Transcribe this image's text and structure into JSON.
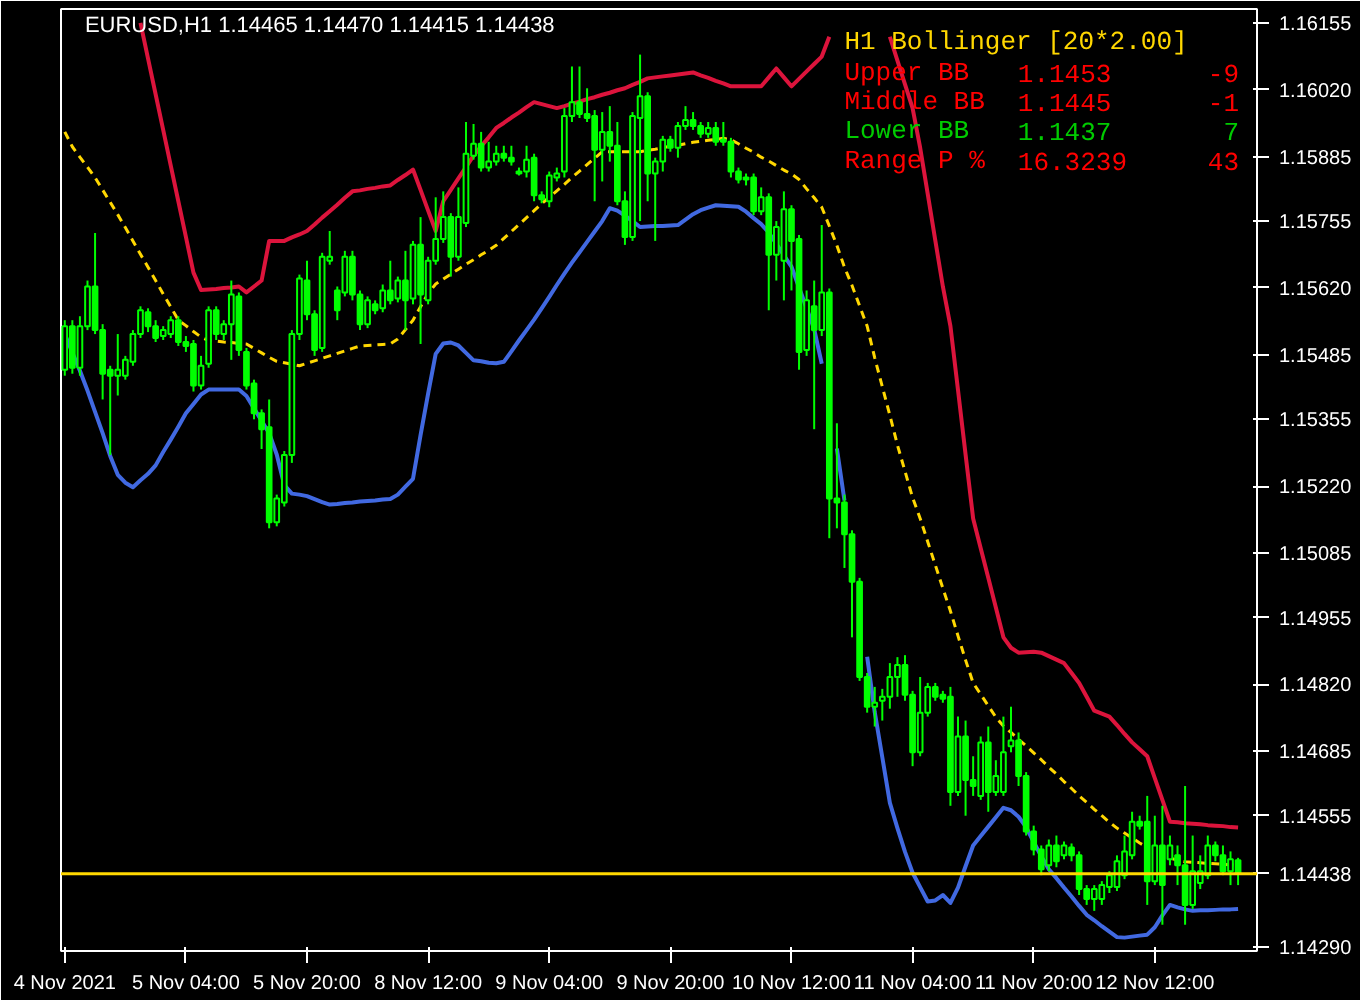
{
  "chart_data": {
    "type": "candlestick",
    "title": "EURUSD,H1  1.14465 1.14470 1.14415 1.14438",
    "color": "#00ff00",
    "annotations": [
      "H1 Bollinger [20*2.00]",
      "Upper BB",
      "1.1453",
      "-9",
      "Middle BB",
      "1.1445",
      "-1",
      "Lower BB",
      "1.1437",
      "7",
      "Range P %",
      "16.3239",
      "43"
    ],
    "categories": [
      "4 Nov 2021",
      null,
      null,
      null,
      null,
      null,
      null,
      null,
      null,
      null,
      null,
      null,
      null,
      null,
      null,
      null,
      "5 Nov 04:00",
      null,
      null,
      null,
      null,
      null,
      null,
      null,
      null,
      null,
      null,
      null,
      null,
      null,
      null,
      null,
      "5 Nov 20:00",
      null,
      null,
      null,
      null,
      null,
      null,
      null,
      null,
      null,
      null,
      null,
      null,
      null,
      null,
      null,
      "8 Nov 12:00",
      null,
      null,
      null,
      null,
      null,
      null,
      null,
      null,
      null,
      null,
      null,
      null,
      null,
      null,
      null,
      "9 Nov 04:00",
      null,
      null,
      null,
      null,
      null,
      null,
      null,
      null,
      null,
      null,
      null,
      null,
      null,
      null,
      null,
      "9 Nov 20:00",
      null,
      null,
      null,
      null,
      null,
      null,
      null,
      null,
      null,
      null,
      null,
      null,
      null,
      null,
      null,
      "10 Nov 12:00",
      null,
      null,
      null,
      null,
      null,
      null,
      null,
      null,
      null,
      null,
      null,
      null,
      null,
      null,
      null,
      "11 Nov 04:00",
      null,
      null,
      null,
      null,
      null,
      null,
      null,
      null,
      null,
      null,
      null,
      null,
      null,
      null,
      null,
      "11 Nov 20:00",
      null,
      null,
      null,
      null,
      null,
      null,
      null,
      null,
      null,
      null,
      null,
      null,
      null,
      null,
      null,
      "12 Nov 12:00",
      null,
      null,
      null,
      null,
      null,
      null,
      null,
      null,
      null,
      null,
      null
    ],
    "ohlc": [
      [
        1.15455,
        1.15555,
        1.15443,
        1.15543
      ],
      [
        1.15543,
        1.15555,
        1.15447,
        1.15459
      ],
      [
        1.15459,
        1.15563,
        1.15443,
        1.15543
      ],
      [
        1.15543,
        1.15635,
        1.15535,
        1.15623
      ],
      [
        1.15623,
        1.15731,
        1.15527,
        1.15535
      ],
      [
        1.15535,
        1.15547,
        1.15395,
        1.15447
      ],
      [
        1.15455,
        1.15463,
        1.15283,
        1.15443
      ],
      [
        1.15443,
        1.15527,
        1.15403,
        1.15455
      ],
      [
        1.15443,
        1.15483,
        1.15435,
        1.15475
      ],
      [
        1.15471,
        1.15535,
        1.15463,
        1.15527
      ],
      [
        1.15527,
        1.15583,
        1.15519,
        1.15575
      ],
      [
        1.15571,
        1.15579,
        1.15531,
        1.15543
      ],
      [
        1.15543,
        1.15555,
        1.15511,
        1.15519
      ],
      [
        1.15523,
        1.15543,
        1.15515,
        1.15535
      ],
      [
        1.15527,
        1.15563,
        1.15519,
        1.15555
      ],
      [
        1.15555,
        1.15563,
        1.15503,
        1.15511
      ],
      [
        1.15511,
        1.15523,
        1.15491,
        1.15503
      ],
      [
        1.15507,
        1.15515,
        1.15411,
        1.15423
      ],
      [
        1.15423,
        1.15483,
        1.15415,
        1.15463
      ],
      [
        1.15467,
        1.15583,
        1.15459,
        1.15575
      ],
      [
        1.15575,
        1.15583,
        1.15515,
        1.15527
      ],
      [
        1.15527,
        1.15555,
        1.15515,
        1.15547
      ],
      [
        1.15547,
        1.15635,
        1.15475,
        1.15607
      ],
      [
        1.15603,
        1.15611,
        1.15483,
        1.15495
      ],
      [
        1.15491,
        1.15499,
        1.15415,
        1.15423
      ],
      [
        1.15427,
        1.15435,
        1.15355,
        1.15367
      ],
      [
        1.15367,
        1.15375,
        1.15295,
        1.15335
      ],
      [
        1.15339,
        1.15395,
        1.15135,
        1.15147
      ],
      [
        1.15147,
        1.15203,
        1.15139,
        1.15195
      ],
      [
        1.15187,
        1.15291,
        1.15179,
        1.15283
      ],
      [
        1.15283,
        1.15535,
        1.15267,
        1.15527
      ],
      [
        1.15527,
        1.15647,
        1.15515,
        1.15639
      ],
      [
        1.15635,
        1.15675,
        1.15555,
        1.15567
      ],
      [
        1.15567,
        1.15575,
        1.15483,
        1.15495
      ],
      [
        1.15499,
        1.15691,
        1.15491,
        1.15683
      ],
      [
        1.15675,
        1.15735,
        1.15667,
        1.15683
      ],
      [
        1.15615,
        1.15623,
        1.15555,
        1.15575
      ],
      [
        1.15611,
        1.15695,
        1.15603,
        1.15683
      ],
      [
        1.15683,
        1.15695,
        1.15595,
        1.15607
      ],
      [
        1.15607,
        1.15615,
        1.15535,
        1.15547
      ],
      [
        1.15547,
        1.15603,
        1.15539,
        1.15595
      ],
      [
        1.15587,
        1.15595,
        1.15567,
        1.15575
      ],
      [
        1.15579,
        1.15627,
        1.15571,
        1.15615
      ],
      [
        1.15615,
        1.15675,
        1.15587,
        1.15595
      ],
      [
        1.15599,
        1.15643,
        1.15591,
        1.15635
      ],
      [
        1.15635,
        1.15695,
        1.15535,
        1.15595
      ],
      [
        1.15599,
        1.15715,
        1.15587,
        1.15707
      ],
      [
        1.15707,
        1.15763,
        1.15507,
        1.15607
      ],
      [
        1.15595,
        1.15683,
        1.15587,
        1.15675
      ],
      [
        1.15675,
        1.15803,
        1.15667,
        1.15719
      ],
      [
        1.15719,
        1.15815,
        1.15711,
        1.15763
      ],
      [
        1.15763,
        1.15771,
        1.15643,
        1.15683
      ],
      [
        1.15683,
        1.15823,
        1.15675,
        1.15763
      ],
      [
        1.15751,
        1.15955,
        1.15743,
        1.15891
      ],
      [
        1.15887,
        1.15951,
        1.15879,
        1.15911
      ],
      [
        1.15911,
        1.15935,
        1.15855,
        1.15863
      ],
      [
        1.15863,
        1.15915,
        1.15855,
        1.15875
      ],
      [
        1.15875,
        1.15907,
        1.15867,
        1.15891
      ],
      [
        1.15891,
        1.15907,
        1.15875,
        1.15883
      ],
      [
        1.15883,
        1.15907,
        1.15867,
        1.15875
      ],
      [
        1.15855,
        1.15863,
        1.15847,
        1.15851
      ],
      [
        1.15855,
        1.15907,
        1.15843,
        1.15879
      ],
      [
        1.15883,
        1.15891,
        1.15795,
        1.15807
      ],
      [
        1.15807,
        1.15815,
        1.15791,
        1.15799
      ],
      [
        1.15795,
        1.15855,
        1.15783,
        1.15847
      ],
      [
        1.15843,
        1.15863,
        1.15835,
        1.15851
      ],
      [
        1.15855,
        1.15983,
        1.15843,
        1.15967
      ],
      [
        1.15967,
        1.16067,
        1.15955,
        1.15995
      ],
      [
        1.15995,
        1.16067,
        1.15963,
        1.15971
      ],
      [
        1.15971,
        1.16023,
        1.15955,
        1.15963
      ],
      [
        1.15967,
        1.15979,
        1.15795,
        1.15899
      ],
      [
        1.15899,
        1.15975,
        1.15835,
        1.15935
      ],
      [
        1.15935,
        1.15987,
        1.15875,
        1.15907
      ],
      [
        1.15907,
        1.15955,
        1.15787,
        1.15795
      ],
      [
        1.15795,
        1.15815,
        1.15707,
        1.15723
      ],
      [
        1.15723,
        1.15975,
        1.15715,
        1.15967
      ],
      [
        1.15963,
        1.16091,
        1.15755,
        1.16007
      ],
      [
        1.16007,
        1.16015,
        1.15795,
        1.15851
      ],
      [
        1.15851,
        1.15883,
        1.15715,
        1.15875
      ],
      [
        1.15875,
        1.15927,
        1.15855,
        1.15919
      ],
      [
        1.15919,
        1.15927,
        1.15895,
        1.15903
      ],
      [
        1.15903,
        1.15955,
        1.15883,
        1.15947
      ],
      [
        1.15947,
        1.15987,
        1.15939,
        1.15959
      ],
      [
        1.15959,
        1.15975,
        1.15939,
        1.15947
      ],
      [
        1.15947,
        1.15955,
        1.15923,
        1.15931
      ],
      [
        1.15931,
        1.15955,
        1.15923,
        1.15943
      ],
      [
        1.15943,
        1.15955,
        1.15907,
        1.15915
      ],
      [
        1.15915,
        1.15955,
        1.15907,
        1.15919
      ],
      [
        1.15915,
        1.15923,
        1.15843,
        1.15855
      ],
      [
        1.15855,
        1.15863,
        1.15831,
        1.15839
      ],
      [
        1.15839,
        1.15851,
        1.15827,
        1.15843
      ],
      [
        1.15843,
        1.15851,
        1.15767,
        1.15775
      ],
      [
        1.15775,
        1.15823,
        1.15767,
        1.15803
      ],
      [
        1.15803,
        1.15811,
        1.15575,
        1.15687
      ],
      [
        1.15687,
        1.15755,
        1.15635,
        1.15743
      ],
      [
        1.15675,
        1.15815,
        1.15595,
        1.15779
      ],
      [
        1.15779,
        1.15787,
        1.15615,
        1.15715
      ],
      [
        1.15719,
        1.15727,
        1.15455,
        1.15491
      ],
      [
        1.15495,
        1.15615,
        1.15483,
        1.15595
      ],
      [
        1.15583,
        1.15635,
        1.15335,
        1.15535
      ],
      [
        1.15535,
        1.15747,
        1.15523,
        1.15611
      ],
      [
        1.15611,
        1.15619,
        1.15115,
        1.15195
      ],
      [
        1.15195,
        1.15347,
        1.15135,
        1.15187
      ],
      [
        1.15187,
        1.15203,
        1.15055,
        1.15123
      ],
      [
        1.15123,
        1.15131,
        1.14915,
        1.15027
      ],
      [
        1.15027,
        1.15035,
        1.14827,
        1.14835
      ],
      [
        1.14835,
        1.14843,
        1.14763,
        1.14775
      ],
      [
        1.14775,
        1.14815,
        1.14735,
        1.14783
      ],
      [
        1.14787,
        1.14811,
        1.14747,
        1.14795
      ],
      [
        1.14795,
        1.14863,
        1.14771,
        1.14835
      ],
      [
        1.14835,
        1.14875,
        1.14795,
        1.14859
      ],
      [
        1.14859,
        1.14879,
        1.14787,
        1.14799
      ],
      [
        1.14799,
        1.14807,
        1.14655,
        1.14683
      ],
      [
        1.14683,
        1.14835,
        1.14675,
        1.14763
      ],
      [
        1.14763,
        1.14823,
        1.14755,
        1.14815
      ],
      [
        1.14815,
        1.14823,
        1.14787,
        1.14795
      ],
      [
        1.14799,
        1.14807,
        1.14783,
        1.14791
      ],
      [
        1.14795,
        1.14815,
        1.14575,
        1.14603
      ],
      [
        1.14603,
        1.14755,
        1.14595,
        1.14715
      ],
      [
        1.14715,
        1.14747,
        1.14555,
        1.14627
      ],
      [
        1.14627,
        1.14675,
        1.14595,
        1.14615
      ],
      [
        1.14595,
        1.14715,
        1.14587,
        1.14703
      ],
      [
        1.14703,
        1.14735,
        1.14563,
        1.14603
      ],
      [
        1.14603,
        1.14667,
        1.14595,
        1.14635
      ],
      [
        1.14603,
        1.14755,
        1.14595,
        1.14683
      ],
      [
        1.14695,
        1.14775,
        1.14683,
        1.14707
      ],
      [
        1.14707,
        1.14723,
        1.14615,
        1.14635
      ],
      [
        1.14635,
        1.14643,
        1.14515,
        1.14523
      ],
      [
        1.14523,
        1.14535,
        1.14475,
        1.14487
      ],
      [
        1.14487,
        1.14495,
        1.14435,
        1.14447
      ],
      [
        1.14455,
        1.14507,
        1.14443,
        1.14495
      ],
      [
        1.14495,
        1.14515,
        1.14451,
        1.14463
      ],
      [
        1.14475,
        1.14503,
        1.14467,
        1.14495
      ],
      [
        1.14491,
        1.14499,
        1.14463,
        1.14475
      ],
      [
        1.14475,
        1.14483,
        1.14395,
        1.14407
      ],
      [
        1.14407,
        1.14415,
        1.14375,
        1.14387
      ],
      [
        1.14387,
        1.14415,
        1.14363,
        1.14407
      ],
      [
        1.14387,
        1.14423,
        1.14375,
        1.14415
      ],
      [
        1.14411,
        1.14443,
        1.14399,
        1.14435
      ],
      [
        1.14411,
        1.14475,
        1.14403,
        1.14463
      ],
      [
        1.14435,
        1.14515,
        1.14427,
        1.14483
      ],
      [
        1.14475,
        1.14563,
        1.14467,
        1.14543
      ],
      [
        1.14543,
        1.14555,
        1.14527,
        1.14535
      ],
      [
        1.14543,
        1.14595,
        1.14375,
        1.14423
      ],
      [
        1.14423,
        1.14555,
        1.14415,
        1.14495
      ],
      [
        1.14495,
        1.14575,
        1.14335,
        1.14415
      ],
      [
        1.14467,
        1.14515,
        1.14455,
        1.14495
      ],
      [
        1.14475,
        1.14495,
        1.14415,
        1.14455
      ],
      [
        1.14455,
        1.14615,
        1.14335,
        1.14375
      ],
      [
        1.14375,
        1.14515,
        1.14367,
        1.14443
      ],
      [
        1.14419,
        1.14475,
        1.14407,
        1.14443
      ],
      [
        1.14435,
        1.14515,
        1.14427,
        1.14495
      ],
      [
        1.14495,
        1.14503,
        1.14463,
        1.14475
      ],
      [
        1.14475,
        1.14495,
        1.14435,
        1.14443
      ],
      [
        1.14443,
        1.14483,
        1.14415,
        1.14467
      ],
      [
        1.14465,
        1.1447,
        1.14415,
        1.14438
      ]
    ],
    "series": [
      {
        "type": "line",
        "color": "#dc143c",
        "values": [
          null,
          null,
          null,
          null,
          null,
          null,
          null,
          null,
          null,
          null,
          1.16155,
          1.16083,
          1.16011,
          1.15939,
          1.15867,
          1.15795,
          1.15723,
          1.15651,
          1.15616,
          1.15617,
          1.15618,
          1.1562,
          1.15621,
          1.15623,
          1.15611,
          1.15623,
          1.15635,
          1.15715,
          1.15715,
          1.15715,
          1.15722,
          1.15728,
          1.15735,
          1.15748,
          1.15762,
          1.15775,
          1.15788,
          1.15802,
          1.15815,
          1.15817,
          1.1582,
          1.15822,
          1.15825,
          1.15827,
          1.15838,
          1.15848,
          1.15859,
          1.15818,
          1.15776,
          1.15735,
          1.15795,
          1.15818,
          1.15841,
          1.15864,
          1.15887,
          1.15906,
          1.15924,
          1.15943,
          1.15953,
          1.15964,
          1.15974,
          1.15985,
          1.15995,
          1.15991,
          1.15987,
          1.15983,
          1.15987,
          1.15992,
          1.15996,
          1.16001,
          1.16005,
          1.1601,
          1.16014,
          1.16019,
          1.16023,
          1.1603,
          1.16036,
          1.16043,
          1.16045,
          1.16047,
          1.16049,
          1.16051,
          1.16053,
          1.16055,
          1.16049,
          1.16044,
          1.16038,
          1.16033,
          1.16027,
          1.16027,
          1.16027,
          1.16027,
          1.16027,
          1.16045,
          1.16063,
          1.16045,
          1.16027,
          1.16042,
          1.16057,
          1.16072,
          1.16087,
          1.16127,
          null,
          null,
          null,
          null,
          null,
          null,
          null,
          1.16127,
          1.16079,
          1.16031,
          1.15983,
          1.15903,
          1.1581,
          1.15716,
          1.15623,
          1.15543,
          1.15414,
          1.15284,
          1.15155,
          1.15095,
          1.15035,
          1.14975,
          1.14915,
          1.14894,
          1.14884,
          1.14885,
          1.14886,
          1.14884,
          1.14877,
          1.1487,
          1.14863,
          1.14843,
          1.14823,
          1.14795,
          1.14767,
          1.14761,
          1.14755,
          1.14738,
          1.1472,
          1.14703,
          1.14689,
          1.14675,
          1.14631,
          1.14587,
          1.14543,
          1.14542,
          1.1454,
          1.14539,
          1.14538,
          1.14536,
          1.14535,
          1.14534,
          1.14532,
          1.14531
        ]
      },
      {
        "type": "line",
        "color": "#ffd700",
        "line_style": "dashed",
        "values": [
          1.15935,
          1.15905,
          1.15884,
          1.15864,
          1.15843,
          1.15818,
          1.15793,
          1.15768,
          1.15742,
          1.15715,
          1.15688,
          1.15662,
          1.15635,
          1.15608,
          1.15582,
          1.15555,
          1.15544,
          1.15532,
          1.15521,
          1.15514,
          1.15513,
          1.15511,
          1.1551,
          1.15508,
          1.15507,
          1.15498,
          1.15489,
          1.1548,
          1.15472,
          1.15469,
          1.15466,
          1.15463,
          1.15468,
          1.15473,
          1.15478,
          1.15483,
          1.15488,
          1.15493,
          1.15498,
          1.15503,
          1.15504,
          1.15505,
          1.15506,
          1.15507,
          1.15517,
          1.15536,
          1.15555,
          1.15582,
          1.15609,
          1.15628,
          1.15638,
          1.15648,
          1.15658,
          1.15668,
          1.15677,
          1.15687,
          1.15696,
          1.15706,
          1.1572,
          1.15734,
          1.15748,
          1.15762,
          1.15776,
          1.1579,
          1.15803,
          1.15816,
          1.15829,
          1.15843,
          1.15856,
          1.15869,
          1.15882,
          1.15895,
          1.15895,
          1.15895,
          1.15895,
          1.15895,
          1.15895,
          1.15898,
          1.159,
          1.15903,
          1.15906,
          1.15908,
          1.15911,
          1.15914,
          1.15916,
          1.15918,
          1.1592,
          1.15922,
          1.15919,
          1.15911,
          1.15902,
          1.15894,
          1.15884,
          1.15876,
          1.15867,
          1.15858,
          1.1585,
          1.15839,
          1.1582,
          1.15802,
          1.15783,
          1.15745,
          1.15706,
          1.15662,
          1.15625,
          1.15584,
          1.15543,
          1.15479,
          1.15421,
          1.15363,
          1.15303,
          1.1525,
          1.15197,
          1.15155,
          1.15108,
          1.15061,
          1.15014,
          1.14968,
          1.14918,
          1.14869,
          1.14823,
          1.148,
          1.14777,
          1.14754,
          1.14736,
          1.14723,
          1.14709,
          1.14696,
          1.14682,
          1.14668,
          1.14653,
          1.14639,
          1.14624,
          1.1461,
          1.14595,
          1.14582,
          1.14568,
          1.14555,
          1.14542,
          1.1453,
          1.1452,
          1.1451,
          1.145,
          1.14491,
          null,
          null,
          1.1447,
          1.14465,
          1.14462,
          1.14461,
          1.1446,
          1.14459,
          1.14458,
          1.14457,
          1.14456,
          1.14455
        ]
      },
      {
        "type": "line",
        "color": "#4169e1",
        "values": [
          1.15527,
          1.1549,
          1.15453,
          1.15413,
          1.1537,
          1.15327,
          1.15281,
          1.15243,
          1.15227,
          1.15218,
          1.15232,
          1.15245,
          1.15262,
          1.15289,
          1.15314,
          1.1534,
          1.15367,
          1.15386,
          1.15405,
          1.15415,
          1.15415,
          1.15415,
          1.15415,
          1.15415,
          1.15402,
          1.15377,
          1.15352,
          1.15327,
          1.15284,
          1.15222,
          1.15205,
          1.15203,
          1.152,
          1.15194,
          1.15188,
          1.15183,
          1.15184,
          1.15186,
          1.15187,
          1.15189,
          1.1519,
          1.15191,
          1.15193,
          1.15194,
          1.15203,
          1.15219,
          1.15235,
          1.15323,
          1.15407,
          1.15487,
          1.15508,
          1.1551,
          1.15504,
          1.15489,
          1.15474,
          1.15472,
          1.15469,
          1.15468,
          1.15471,
          1.15492,
          1.15514,
          1.15535,
          1.15556,
          1.15579,
          1.15602,
          1.15626,
          1.15649,
          1.15671,
          1.15692,
          1.15713,
          1.15734,
          1.15755,
          1.15781,
          1.15776,
          1.15766,
          1.15755,
          1.15743,
          1.15744,
          1.15745,
          1.15745,
          1.15746,
          1.15747,
          1.15758,
          1.15769,
          1.15777,
          1.15782,
          1.15787,
          1.15786,
          1.15785,
          1.15784,
          1.15774,
          1.15761,
          1.15749,
          1.15732,
          1.15709,
          1.15686,
          1.15663,
          1.15621,
          1.15579,
          1.15537,
          1.15467,
          null,
          1.15296,
          1.15191,
          null,
          null,
          1.14876,
          1.14764,
          1.14673,
          1.14581,
          1.1453,
          1.14482,
          1.1444,
          1.14411,
          1.14382,
          1.14384,
          1.14395,
          1.14379,
          1.1441,
          1.14453,
          1.14495,
          1.14514,
          1.14533,
          1.14552,
          1.14571,
          1.14566,
          1.14553,
          1.14532,
          1.14502,
          1.14473,
          1.14447,
          1.14429,
          1.1441,
          1.14392,
          1.14373,
          1.14355,
          1.14344,
          1.14332,
          1.14321,
          1.1431,
          1.14309,
          1.14311,
          1.14313,
          1.14315,
          1.1433,
          1.14354,
          1.14375,
          1.1437,
          1.14366,
          1.14363,
          1.14364,
          1.14364,
          1.14365,
          1.14366,
          1.14366,
          1.14367
        ]
      }
    ],
    "ref_lines": [
      {
        "axis": "y",
        "value": 1.14438,
        "label": "1.14438",
        "color": "#ffd700"
      }
    ],
    "ylim": [
      1.14282,
      1.16183
    ],
    "yticks": [
      1.16155,
      {
        "value": 1.1602,
        "label": "1.16020"
      },
      1.15885,
      1.15755,
      {
        "value": 1.1562,
        "label": "1.15620"
      },
      1.15485,
      1.15355,
      {
        "value": 1.1522,
        "label": "1.15220"
      },
      1.15085,
      1.14955,
      {
        "value": 1.1482,
        "label": "1.14820"
      },
      1.14685,
      1.14555,
      {
        "value": 1.1429,
        "label": "1.14290"
      }
    ],
    "grid": false
  }
}
